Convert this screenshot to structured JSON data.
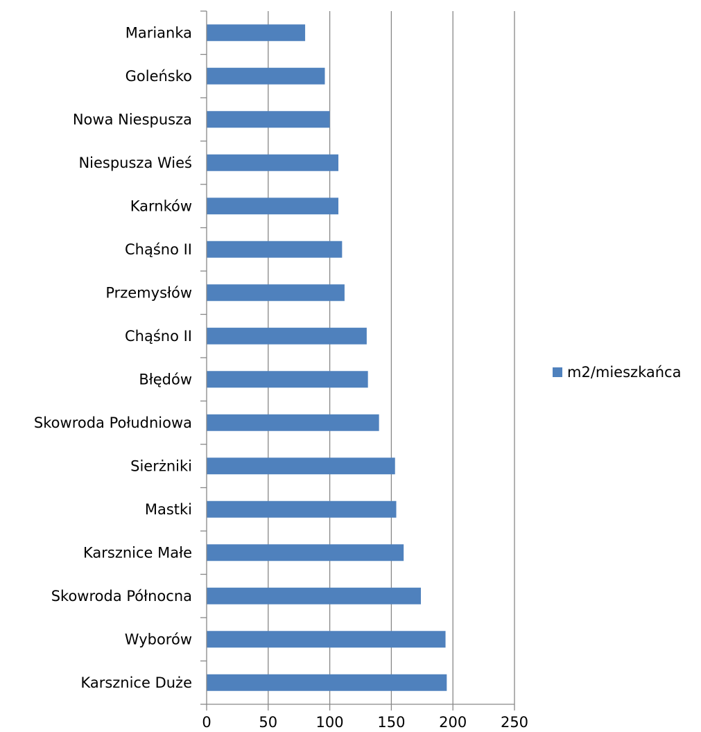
{
  "chart_data": {
    "type": "bar",
    "orientation": "horizontal",
    "categories": [
      "Marianka",
      "Goleńsko",
      "Nowa Niespusza",
      "Niespusza Wieś",
      "Karnków",
      "Chąśno II",
      "Przemysłów",
      "Chąśno II",
      "Błędów",
      "Skowroda Południowa",
      "Sierżniki",
      "Mastki",
      "Karsznice Małe",
      "Skowroda Północna",
      "Wyborów",
      "Karsznice Duże"
    ],
    "series": [
      {
        "name": "m2/mieszkańca",
        "color": "#4F81BD",
        "values": [
          80,
          96,
          100,
          107,
          107,
          110,
          112,
          130,
          131,
          140,
          153,
          154,
          160,
          174,
          194,
          195
        ]
      }
    ],
    "xlim": [
      0,
      250
    ],
    "xticks": [
      "0",
      "50",
      "100",
      "150",
      "200",
      "250"
    ],
    "grid": "vertical",
    "legend_position": "right"
  }
}
